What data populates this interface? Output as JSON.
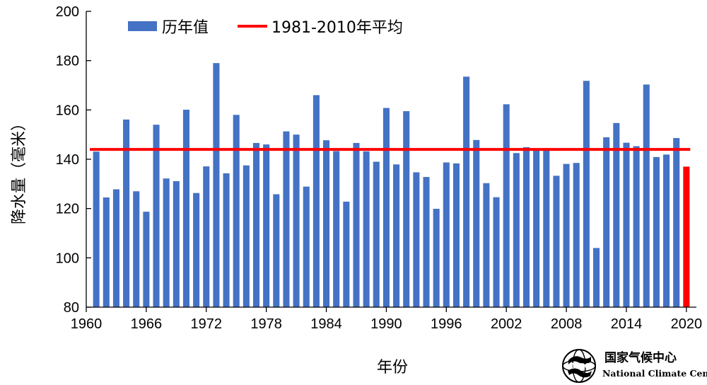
{
  "chart_data": {
    "type": "bar",
    "x": [
      1961,
      1962,
      1963,
      1964,
      1965,
      1966,
      1967,
      1968,
      1969,
      1970,
      1971,
      1972,
      1973,
      1974,
      1975,
      1976,
      1977,
      1978,
      1979,
      1980,
      1981,
      1982,
      1983,
      1984,
      1985,
      1986,
      1987,
      1988,
      1989,
      1990,
      1991,
      1992,
      1993,
      1994,
      1995,
      1996,
      1997,
      1998,
      1999,
      2000,
      2001,
      2002,
      2003,
      2004,
      2005,
      2006,
      2007,
      2008,
      2009,
      2010,
      2011,
      2012,
      2013,
      2014,
      2015,
      2016,
      2017,
      2018,
      2019,
      2020
    ],
    "series": [
      {
        "name": "历年值",
        "color": "#4472C4",
        "values": [
          143.1,
          124.5,
          127.8,
          156.1,
          127.0,
          118.7,
          154.0,
          132.2,
          131.1,
          160.1,
          126.3,
          137.1,
          179.0,
          134.3,
          158.0,
          137.5,
          146.6,
          146.0,
          125.8,
          151.3,
          150.0,
          128.9,
          166.0,
          147.7,
          143.3,
          122.8,
          146.6,
          143.2,
          139.0,
          160.8,
          137.9,
          159.5,
          134.7,
          132.8,
          119.9,
          138.7,
          138.3,
          173.5,
          147.8,
          130.3,
          124.6,
          162.3,
          142.5,
          144.9,
          144.0,
          143.5,
          133.3,
          138.1,
          138.5,
          171.8,
          104.0,
          148.9,
          154.7,
          146.7,
          145.3,
          170.3,
          140.9,
          141.9,
          148.6,
          null
        ]
      }
    ],
    "highlight": {
      "x": 2020,
      "value": 137.0,
      "color": "#FF0000"
    },
    "reference_line": {
      "name": "1981-2010年平均",
      "value": 144.0,
      "color": "#FF0000"
    },
    "xlabel": "年份",
    "ylabel": "降水量（毫米）",
    "xlim": [
      1960,
      2021
    ],
    "ylim": [
      80,
      200
    ],
    "xticks": [
      "1960",
      "1966",
      "1972",
      "1978",
      "1984",
      "1990",
      "1996",
      "2002",
      "2008",
      "2014",
      "2020"
    ],
    "yticks": [
      "80",
      "100",
      "120",
      "140",
      "160",
      "180",
      "200"
    ],
    "legend_placement": "top-left",
    "grid": false
  },
  "logo": {
    "name_cn": "国家气候中心",
    "name_en": "National Climate Center",
    "icon": "ncc-globe-logo-icon"
  }
}
